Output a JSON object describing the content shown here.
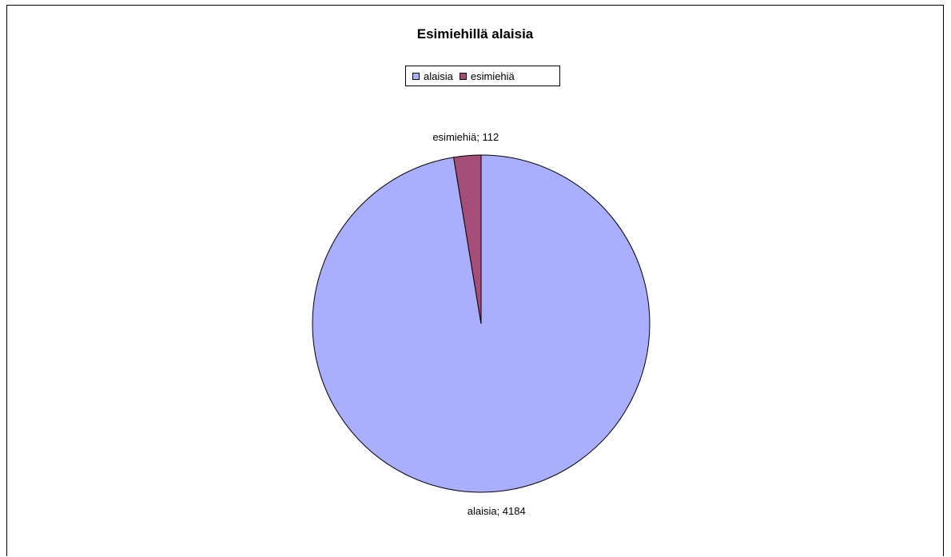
{
  "chart_data": {
    "type": "pie",
    "title": "Esimiehillä alaisia",
    "categories": [
      "alaisia",
      "esimiehiä"
    ],
    "values": [
      4184,
      112
    ],
    "colors": [
      "#aaaeff",
      "#a64e7a"
    ],
    "data_labels": [
      "alaisia; 4184",
      "esimiehiä; 112"
    ],
    "legend_position": "top"
  }
}
